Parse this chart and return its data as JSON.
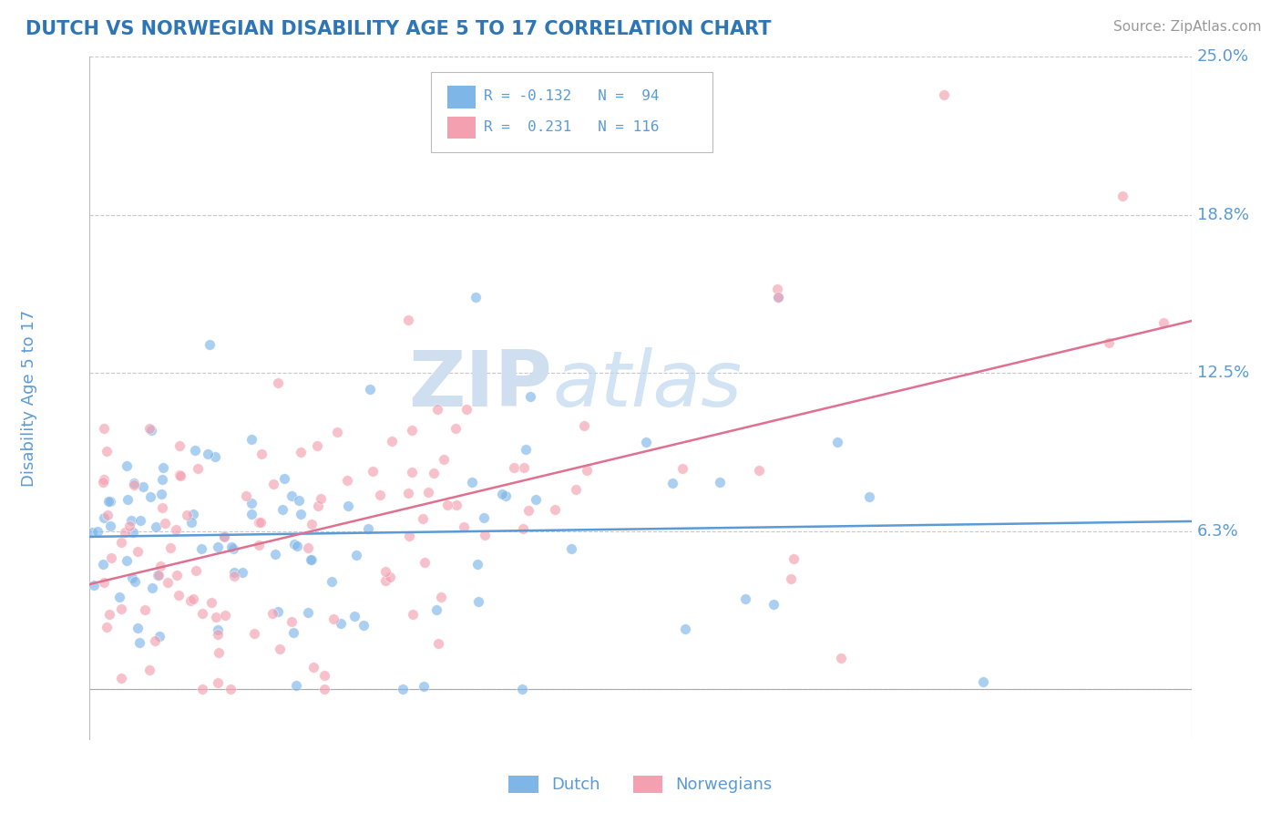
{
  "title": "DUTCH VS NORWEGIAN DISABILITY AGE 5 TO 17 CORRELATION CHART",
  "source": "Source: ZipAtlas.com",
  "ylabel": "Disability Age 5 to 17",
  "xlim": [
    0.0,
    0.8
  ],
  "ylim": [
    -0.02,
    0.25
  ],
  "ytick_values": [
    0.0,
    0.0625,
    0.125,
    0.1875,
    0.25
  ],
  "yticklabels": [
    "",
    "6.3%",
    "12.5%",
    "18.8%",
    "25.0%"
  ],
  "dutch_color": "#7eb6e8",
  "norwegian_color": "#f4a0b0",
  "dutch_line_color": "#5b9bd5",
  "norwegian_line_color": "#e07090",
  "dutch_R": -0.132,
  "dutch_N": 94,
  "norwegian_R": 0.231,
  "norwegian_N": 116,
  "legend_label_dutch": "Dutch",
  "legend_label_norwegian": "Norwegians",
  "title_color": "#2e75b6",
  "axis_label_color": "#5b9bd5",
  "tick_label_color": "#5b9bd5",
  "background_color": "#ffffff",
  "grid_color": "#c8c8c8",
  "watermark_zip": "ZIP",
  "watermark_atlas": "atlas",
  "dutch_seed": 12,
  "norwegian_seed": 99
}
